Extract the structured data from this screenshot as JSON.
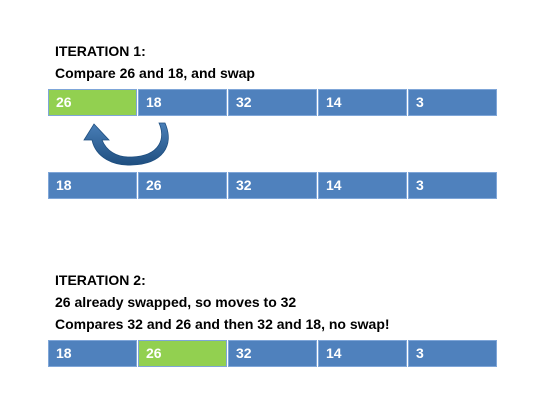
{
  "iteration1": {
    "heading": "ITERATION 1:",
    "description": "Compare 26 and 18, and swap"
  },
  "iteration2": {
    "heading": "ITERATION 2:",
    "line1": "26 already swapped, so moves to 32",
    "line2": "Compares 32 and 26 and then 32 and 18, no swap!"
  },
  "arrays": [
    {
      "cells": [
        "26",
        "18",
        "32",
        "14",
        "3"
      ],
      "highlight_index": 0
    },
    {
      "cells": [
        "18",
        "26",
        "32",
        "14",
        "3"
      ],
      "highlight_index": null
    },
    {
      "cells": [
        "18",
        "26",
        "32",
        "14",
        "3"
      ],
      "highlight_index": 1
    }
  ],
  "colors": {
    "cell_default": "#4f81bd",
    "cell_highlight": "#92d050",
    "arrow": "#2e5e8e"
  },
  "icons": {
    "swap_arrow": "curved-arrow-icon"
  }
}
